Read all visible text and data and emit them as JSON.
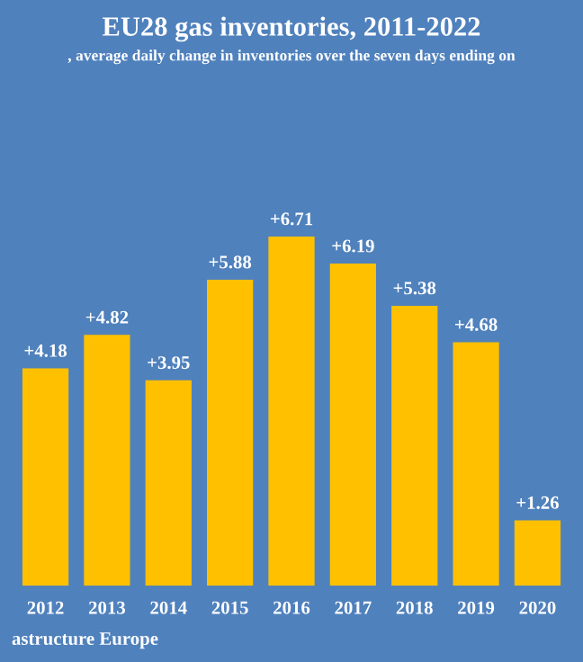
{
  "chart_data": {
    "type": "bar",
    "title": "EU28 gas inventories, 2011-2022",
    "subtitle": ", average daily change in inventories over the seven days ending on",
    "categories": [
      "2012",
      "2013",
      "2014",
      "2015",
      "2016",
      "2017",
      "2018",
      "2019",
      "2020"
    ],
    "values": [
      4.18,
      4.82,
      3.95,
      5.88,
      6.71,
      6.19,
      5.38,
      4.68,
      1.26
    ],
    "value_labels": [
      "+4.18",
      "+4.82",
      "+3.95",
      "+5.88",
      "+6.71",
      "+6.19",
      "+5.38",
      "+4.68",
      "+1.26"
    ],
    "color": "#ffc000",
    "annotations": [
      "astructure Europe"
    ],
    "grid": false,
    "legend": false
  }
}
